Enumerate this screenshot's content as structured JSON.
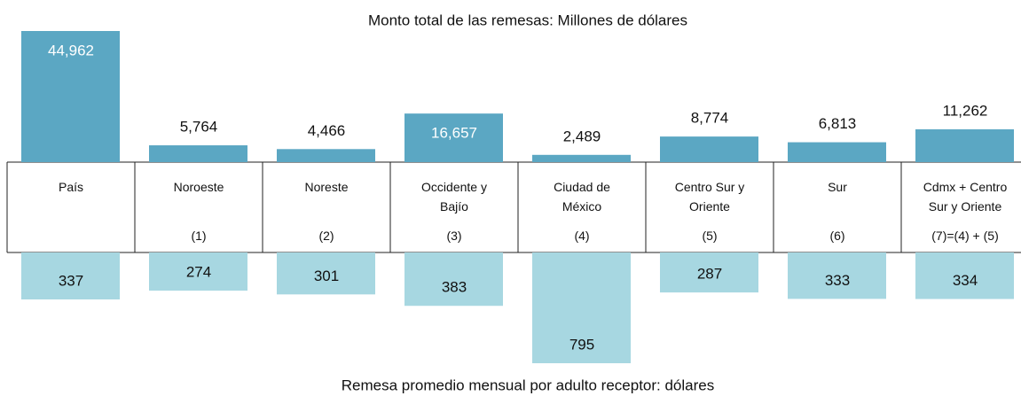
{
  "chart_data": [
    {
      "type": "bar",
      "title": "Monto total de las remesas: Millones de dólares",
      "categories": [
        "País",
        "Noroeste",
        "Noreste",
        "Occidente y Bajío",
        "Ciudad de México",
        "Centro Sur y Oriente",
        "Sur",
        "Cdmx + Centro Sur y Oriente"
      ],
      "codes": [
        null,
        "(1)",
        "(2)",
        "(3)",
        "(4)",
        "(5)",
        "(6)",
        "(7)=(4) + (5)"
      ],
      "values": [
        44962,
        5764,
        4466,
        16657,
        2489,
        8774,
        6813,
        11262
      ],
      "value_labels": [
        "44,962",
        "5,764",
        "4,466",
        "16,657",
        "2,489",
        "8,774",
        "6,813",
        "11,262"
      ],
      "color": "#5ba7c3"
    },
    {
      "type": "bar",
      "title": "Remesa promedio mensual por adulto receptor: dólares",
      "values": [
        337,
        274,
        301,
        383,
        795,
        287,
        333,
        334
      ],
      "color": "#a7d7e1"
    }
  ]
}
